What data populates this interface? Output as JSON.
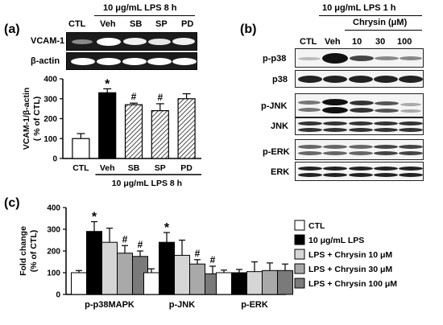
{
  "panel_a": {
    "letter": "(a)",
    "treatment_top": "10 μg/mL LPS 8 h",
    "lanes": [
      "CTL",
      "Veh",
      "SB",
      "SP",
      "PD"
    ],
    "blot_labels": [
      "VCAM-1",
      "β-actin"
    ]
  },
  "panel_b": {
    "letter": "(b)",
    "treatment_top": "10 μg/mL LPS 1 h",
    "chrysin_header": "Chrysin (μM)",
    "lanes": [
      "CTL",
      "Veh",
      "10",
      "30",
      "100"
    ],
    "blot_labels": [
      "p-p38",
      "p38",
      "p-JNK",
      "JNK",
      "p-ERK",
      "ERK"
    ]
  },
  "panel_c": {
    "letter": "(c)"
  },
  "chart_data": [
    {
      "type": "bar",
      "ylabel": "VCAM-1/β-actin\n( % of CTL)",
      "ylim": [
        0,
        400
      ],
      "yticks": [
        0,
        100,
        200,
        300,
        400
      ],
      "categories": [
        "CTL",
        "Veh",
        "SB",
        "SP",
        "PD"
      ],
      "values": [
        100,
        330,
        270,
        240,
        300
      ],
      "errors": [
        25,
        20,
        8,
        35,
        25
      ],
      "annotations": [
        "",
        "*",
        "#",
        "#",
        ""
      ],
      "fills": [
        "white",
        "black",
        "hatch",
        "hatch",
        "hatch"
      ],
      "xlabel_bottom": "10 μg/mL LPS 8 h"
    },
    {
      "type": "bar",
      "ylabel": "Fold change\n(% of CTL)",
      "ylim": [
        0,
        400
      ],
      "yticks": [
        0,
        100,
        200,
        300,
        400
      ],
      "categories": [
        "p-p38MAPK",
        "p-JNK",
        "p-ERK"
      ],
      "legend_position": "right",
      "series": [
        {
          "name": "CTL",
          "color": "#ffffff",
          "values": [
            100,
            100,
            100
          ],
          "errors": [
            10,
            18,
            12
          ],
          "annotations": [
            "",
            "",
            ""
          ]
        },
        {
          "name": "10 μg/mL LPS",
          "color": "#000000",
          "values": [
            290,
            240,
            100
          ],
          "errors": [
            45,
            45,
            15
          ],
          "annotations": [
            "*",
            "*",
            ""
          ]
        },
        {
          "name": "LPS + Chrysin 10 μM",
          "color": "#d6d6d6",
          "values": [
            240,
            180,
            105
          ],
          "errors": [
            65,
            70,
            45
          ],
          "annotations": [
            "",
            "",
            ""
          ]
        },
        {
          "name": "LPS + Chrysin 30 μM",
          "color": "#a9a9a9",
          "values": [
            190,
            140,
            110
          ],
          "errors": [
            35,
            20,
            35
          ],
          "annotations": [
            "#",
            "#",
            ""
          ]
        },
        {
          "name": "LPS + Chrysin 100 μM",
          "color": "#7a7a7a",
          "values": [
            175,
            95,
            110
          ],
          "errors": [
            25,
            35,
            30
          ],
          "annotations": [
            "#",
            "#",
            ""
          ]
        }
      ]
    }
  ]
}
